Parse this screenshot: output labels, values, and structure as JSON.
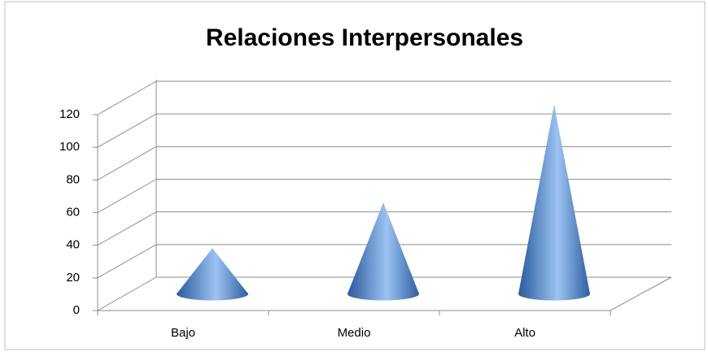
{
  "chart_data": {
    "type": "cone3d",
    "title": "Relaciones Interpersonales",
    "categories": [
      "Bajo",
      "Medio",
      "Alto"
    ],
    "values": [
      28,
      56,
      116
    ],
    "color": "#4f81bd",
    "ylim": [
      0,
      120
    ],
    "yticks": [
      0,
      20,
      40,
      60,
      80,
      100,
      120
    ],
    "grid": true
  }
}
